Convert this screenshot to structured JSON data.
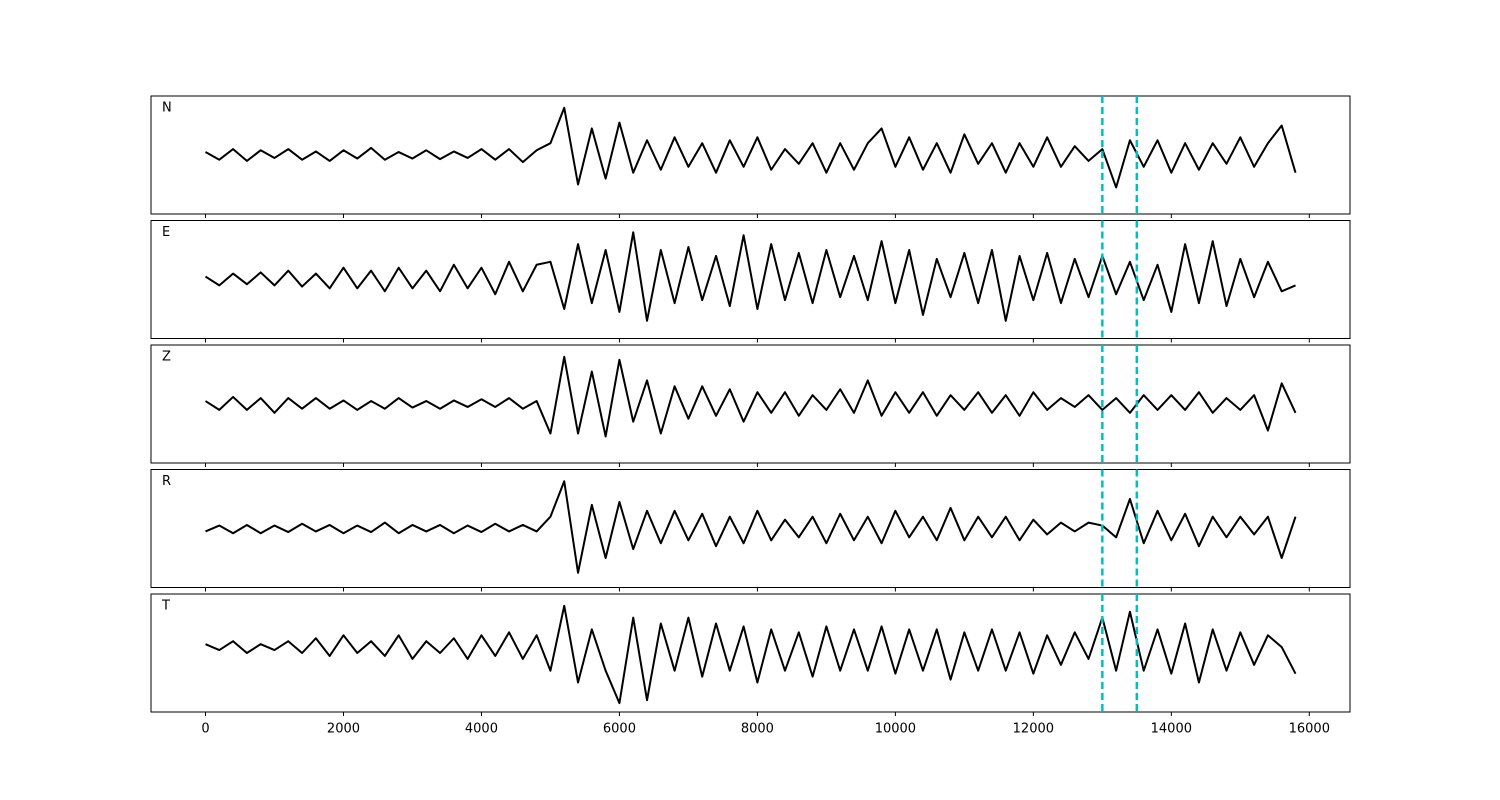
{
  "chart_data": [
    {
      "type": "line",
      "label": "N",
      "color": "#000000",
      "xlim": [
        -790,
        16590
      ],
      "ylim": [
        -1,
        1
      ],
      "xticks": [
        0,
        2000,
        4000,
        6000,
        8000,
        10000,
        12000,
        14000,
        16000
      ],
      "vlines": [
        13000,
        13500
      ],
      "vline_color": "#00bfbf",
      "x": [
        0,
        200,
        400,
        600,
        800,
        1000,
        1200,
        1400,
        1600,
        1800,
        2000,
        2200,
        2400,
        2600,
        2800,
        3000,
        3200,
        3400,
        3600,
        3800,
        4000,
        4200,
        4400,
        4600,
        4800,
        5000,
        5200,
        5400,
        5600,
        5800,
        6000,
        6200,
        6400,
        6600,
        6800,
        7000,
        7200,
        7400,
        7600,
        7800,
        8000,
        8200,
        8400,
        8600,
        8800,
        9000,
        9200,
        9400,
        9600,
        9800,
        10000,
        10200,
        10400,
        10600,
        10800,
        11000,
        11200,
        11400,
        11600,
        11800,
        12000,
        12200,
        12400,
        12600,
        12800,
        13000,
        13200,
        13400,
        13600,
        13800,
        14000,
        14200,
        14400,
        14600,
        14800,
        15000,
        15200,
        15400,
        15600,
        15800
      ],
      "values": [
        0.05,
        -0.08,
        0.1,
        -0.1,
        0.08,
        -0.05,
        0.1,
        -0.08,
        0.06,
        -0.1,
        0.08,
        -0.06,
        0.12,
        -0.08,
        0.05,
        -0.06,
        0.08,
        -0.07,
        0.06,
        -0.05,
        0.1,
        -0.08,
        0.1,
        -0.12,
        0.08,
        0.2,
        0.8,
        -0.5,
        0.45,
        -0.4,
        0.55,
        -0.3,
        0.25,
        -0.25,
        0.3,
        -0.2,
        0.2,
        -0.3,
        0.25,
        -0.2,
        0.3,
        -0.25,
        0.1,
        -0.15,
        0.2,
        -0.3,
        0.2,
        -0.25,
        0.2,
        0.45,
        -0.2,
        0.3,
        -0.25,
        0.2,
        -0.3,
        0.35,
        -0.15,
        0.2,
        -0.3,
        0.2,
        -0.2,
        0.3,
        -0.2,
        0.15,
        -0.1,
        0.1,
        -0.55,
        0.25,
        -0.2,
        0.25,
        -0.3,
        0.2,
        -0.25,
        0.2,
        -0.15,
        0.3,
        -0.2,
        0.2,
        0.5,
        -0.3
      ]
    },
    {
      "type": "line",
      "label": "E",
      "color": "#000000",
      "xlim": [
        -790,
        16590
      ],
      "ylim": [
        -1,
        1
      ],
      "xticks": [
        0,
        2000,
        4000,
        6000,
        8000,
        10000,
        12000,
        14000,
        16000
      ],
      "vlines": [
        13000,
        13500
      ],
      "vline_color": "#00bfbf",
      "x": [
        0,
        200,
        400,
        600,
        800,
        1000,
        1200,
        1400,
        1600,
        1800,
        2000,
        2200,
        2400,
        2600,
        2800,
        3000,
        3200,
        3400,
        3600,
        3800,
        4000,
        4200,
        4400,
        4600,
        4800,
        5000,
        5200,
        5400,
        5600,
        5800,
        6000,
        6200,
        6400,
        6600,
        6800,
        7000,
        7200,
        7400,
        7600,
        7800,
        8000,
        8200,
        8400,
        8600,
        8800,
        9000,
        9200,
        9400,
        9600,
        9800,
        10000,
        10200,
        10400,
        10600,
        10800,
        11000,
        11200,
        11400,
        11600,
        11800,
        12000,
        12200,
        12400,
        12600,
        12800,
        13000,
        13200,
        13400,
        13600,
        13800,
        14000,
        14200,
        14400,
        14600,
        14800,
        15000,
        15200,
        15400,
        15600,
        15800
      ],
      "values": [
        0.05,
        -0.1,
        0.1,
        -0.08,
        0.12,
        -0.1,
        0.15,
        -0.12,
        0.1,
        -0.15,
        0.2,
        -0.15,
        0.15,
        -0.2,
        0.2,
        -0.15,
        0.15,
        -0.2,
        0.25,
        -0.15,
        0.2,
        -0.25,
        0.3,
        -0.2,
        0.25,
        0.3,
        -0.5,
        0.6,
        -0.4,
        0.5,
        -0.55,
        0.8,
        -0.7,
        0.5,
        -0.4,
        0.55,
        -0.35,
        0.4,
        -0.45,
        0.75,
        -0.5,
        0.6,
        -0.35,
        0.45,
        -0.4,
        0.5,
        -0.3,
        0.4,
        -0.35,
        0.65,
        -0.4,
        0.5,
        -0.6,
        0.35,
        -0.3,
        0.45,
        -0.4,
        0.5,
        -0.7,
        0.4,
        -0.35,
        0.45,
        -0.4,
        0.35,
        -0.3,
        0.4,
        -0.25,
        0.3,
        -0.35,
        0.25,
        -0.55,
        0.6,
        -0.4,
        0.65,
        -0.45,
        0.35,
        -0.3,
        0.3,
        -0.2,
        -0.1
      ]
    },
    {
      "type": "line",
      "label": "Z",
      "color": "#000000",
      "xlim": [
        -790,
        16590
      ],
      "ylim": [
        -1,
        1
      ],
      "xticks": [
        0,
        2000,
        4000,
        6000,
        8000,
        10000,
        12000,
        14000,
        16000
      ],
      "vlines": [
        13000,
        13500
      ],
      "vline_color": "#00bfbf",
      "x": [
        0,
        200,
        400,
        600,
        800,
        1000,
        1200,
        1400,
        1600,
        1800,
        2000,
        2200,
        2400,
        2600,
        2800,
        3000,
        3200,
        3400,
        3600,
        3800,
        4000,
        4200,
        4400,
        4600,
        4800,
        5000,
        5200,
        5400,
        5600,
        5800,
        6000,
        6200,
        6400,
        6600,
        6800,
        7000,
        7200,
        7400,
        7600,
        7800,
        8000,
        8200,
        8400,
        8600,
        8800,
        9000,
        9200,
        9400,
        9600,
        9800,
        10000,
        10200,
        10400,
        10600,
        10800,
        11000,
        11200,
        11400,
        11600,
        11800,
        12000,
        12200,
        12400,
        12600,
        12800,
        13000,
        13200,
        13400,
        13600,
        13800,
        14000,
        14200,
        14400,
        14600,
        14800,
        15000,
        15200,
        15400,
        15600,
        15800
      ],
      "values": [
        0.05,
        -0.1,
        0.12,
        -0.1,
        0.1,
        -0.15,
        0.1,
        -0.08,
        0.1,
        -0.08,
        0.06,
        -0.1,
        0.05,
        -0.08,
        0.1,
        -0.06,
        0.05,
        -0.08,
        0.06,
        -0.05,
        0.08,
        -0.05,
        0.1,
        -0.08,
        0.05,
        -0.5,
        0.8,
        -0.5,
        0.55,
        -0.55,
        0.75,
        -0.3,
        0.4,
        -0.5,
        0.3,
        -0.25,
        0.3,
        -0.2,
        0.25,
        -0.3,
        0.2,
        -0.15,
        0.2,
        -0.2,
        0.15,
        -0.1,
        0.25,
        -0.15,
        0.4,
        -0.2,
        0.2,
        -0.15,
        0.2,
        -0.2,
        0.15,
        -0.1,
        0.2,
        -0.15,
        0.15,
        -0.2,
        0.2,
        -0.1,
        0.1,
        -0.05,
        0.15,
        -0.1,
        0.1,
        -0.15,
        0.15,
        -0.1,
        0.15,
        -0.1,
        0.2,
        -0.15,
        0.1,
        -0.1,
        0.15,
        -0.45,
        0.35,
        -0.15
      ]
    },
    {
      "type": "line",
      "label": "R",
      "color": "#000000",
      "xlim": [
        -790,
        16590
      ],
      "ylim": [
        -1,
        1
      ],
      "xticks": [
        0,
        2000,
        4000,
        6000,
        8000,
        10000,
        12000,
        14000,
        16000
      ],
      "vlines": [
        13000,
        13500
      ],
      "vline_color": "#00bfbf",
      "x": [
        0,
        200,
        400,
        600,
        800,
        1000,
        1200,
        1400,
        1600,
        1800,
        2000,
        2200,
        2400,
        2600,
        2800,
        3000,
        3200,
        3400,
        3600,
        3800,
        4000,
        4200,
        4400,
        4600,
        4800,
        5000,
        5200,
        5400,
        5600,
        5800,
        6000,
        6200,
        6400,
        6600,
        6800,
        7000,
        7200,
        7400,
        7600,
        7800,
        8000,
        8200,
        8400,
        8600,
        8800,
        9000,
        9200,
        9400,
        9600,
        9800,
        10000,
        10200,
        10400,
        10600,
        10800,
        11000,
        11200,
        11400,
        11600,
        11800,
        12000,
        12200,
        12400,
        12600,
        12800,
        13000,
        13200,
        13400,
        13600,
        13800,
        14000,
        14200,
        14400,
        14600,
        14800,
        15000,
        15200,
        15400,
        15600,
        15800
      ],
      "values": [
        -0.05,
        0.05,
        -0.08,
        0.06,
        -0.08,
        0.05,
        -0.06,
        0.08,
        -0.05,
        0.06,
        -0.08,
        0.05,
        -0.06,
        0.1,
        -0.08,
        0.06,
        -0.05,
        0.06,
        -0.08,
        0.05,
        -0.06,
        0.08,
        -0.05,
        0.06,
        -0.05,
        0.2,
        0.8,
        -0.75,
        0.4,
        -0.5,
        0.45,
        -0.35,
        0.3,
        -0.25,
        0.3,
        -0.2,
        0.25,
        -0.3,
        0.2,
        -0.25,
        0.3,
        -0.2,
        0.15,
        -0.15,
        0.2,
        -0.25,
        0.25,
        -0.2,
        0.2,
        -0.25,
        0.3,
        -0.15,
        0.2,
        -0.2,
        0.35,
        -0.2,
        0.2,
        -0.15,
        0.2,
        -0.2,
        0.15,
        -0.1,
        0.1,
        -0.05,
        0.1,
        0.05,
        -0.15,
        0.5,
        -0.25,
        0.3,
        -0.2,
        0.25,
        -0.3,
        0.2,
        -0.15,
        0.2,
        -0.1,
        0.2,
        -0.5,
        0.2
      ]
    },
    {
      "type": "line",
      "label": "T",
      "color": "#000000",
      "xlim": [
        -790,
        16590
      ],
      "ylim": [
        -1,
        1
      ],
      "xticks": [
        0,
        2000,
        4000,
        6000,
        8000,
        10000,
        12000,
        14000,
        16000
      ],
      "vlines": [
        13000,
        13500
      ],
      "vline_color": "#00bfbf",
      "x": [
        0,
        200,
        400,
        600,
        800,
        1000,
        1200,
        1400,
        1600,
        1800,
        2000,
        2200,
        2400,
        2600,
        2800,
        3000,
        3200,
        3400,
        3600,
        3800,
        4000,
        4200,
        4400,
        4600,
        4800,
        5000,
        5200,
        5400,
        5600,
        5800,
        6000,
        6200,
        6400,
        6600,
        6800,
        7000,
        7200,
        7400,
        7600,
        7800,
        8000,
        8200,
        8400,
        8600,
        8800,
        9000,
        9200,
        9400,
        9600,
        9800,
        10000,
        10200,
        10400,
        10600,
        10800,
        11000,
        11200,
        11400,
        11600,
        11800,
        12000,
        12200,
        12400,
        12600,
        12800,
        13000,
        13200,
        13400,
        13600,
        13800,
        14000,
        14200,
        14400,
        14600,
        14800,
        15000,
        15200,
        15400,
        15600,
        15800
      ],
      "values": [
        0.15,
        0.05,
        0.2,
        0.0,
        0.15,
        0.05,
        0.2,
        0.0,
        0.25,
        -0.05,
        0.3,
        0.0,
        0.2,
        -0.05,
        0.3,
        -0.1,
        0.2,
        0.0,
        0.25,
        -0.1,
        0.3,
        -0.05,
        0.35,
        -0.1,
        0.3,
        -0.3,
        0.8,
        -0.5,
        0.4,
        -0.3,
        -0.85,
        0.6,
        -0.8,
        0.5,
        -0.3,
        0.6,
        -0.4,
        0.5,
        -0.3,
        0.45,
        -0.5,
        0.4,
        -0.3,
        0.35,
        -0.4,
        0.45,
        -0.3,
        0.4,
        -0.3,
        0.45,
        -0.35,
        0.4,
        -0.3,
        0.4,
        -0.45,
        0.35,
        -0.3,
        0.4,
        -0.3,
        0.35,
        -0.35,
        0.3,
        -0.2,
        0.35,
        -0.1,
        0.6,
        -0.3,
        0.7,
        -0.3,
        0.4,
        -0.35,
        0.5,
        -0.5,
        0.4,
        -0.3,
        0.35,
        -0.2,
        0.3,
        0.1,
        -0.35
      ]
    }
  ]
}
